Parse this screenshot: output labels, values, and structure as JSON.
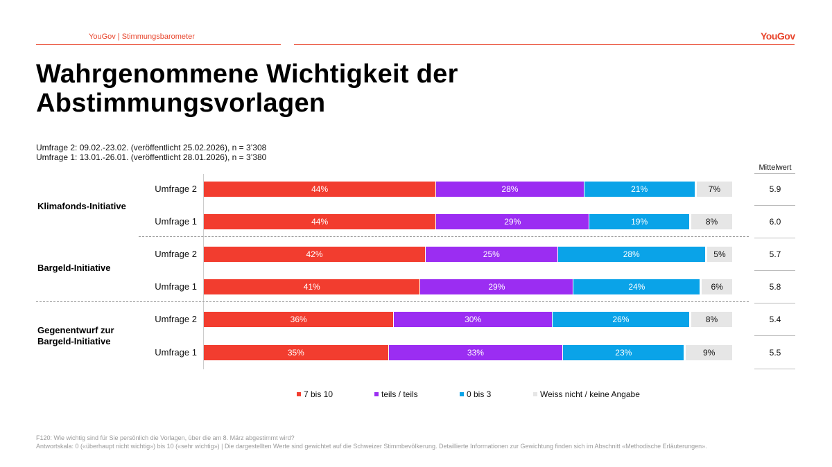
{
  "header": {
    "source_label": "YouGov | Stimmungsbarometer",
    "logo_text": "YouGov"
  },
  "title": "Wahrgenommene Wichtigkeit der Abstimmungsvorlagen",
  "surveys": [
    "Umfrage 2: 09.02.-23.02. (veröffentlicht 25.02.2026), n = 3’308",
    "Umfrage 1: 13.01.-26.01. (veröffentlicht 28.01.2026), n = 3’380"
  ],
  "colors": {
    "red": "#f23d2f",
    "purple": "#9b2df2",
    "blue": "#0aa3e8",
    "grey": "#e6e6e6",
    "accent": "#e8452c"
  },
  "chart_data": {
    "type": "bar",
    "orientation": "horizontal",
    "stacked": true,
    "mean_header": "Mittelwert",
    "legend": [
      "7 bis 10",
      "teils / teils",
      "0 bis 3",
      "Weiss nicht / keine Angabe"
    ],
    "groups": [
      {
        "label": "Klimafonds-Initiative",
        "rows": [
          {
            "label": "Umfrage 2",
            "values": [
              44,
              28,
              21,
              7
            ],
            "mean": "5.9"
          },
          {
            "label": "Umfrage 1",
            "values": [
              44,
              29,
              19,
              8
            ],
            "mean": "6.0"
          }
        ]
      },
      {
        "label": "Bargeld-Initiative",
        "rows": [
          {
            "label": "Umfrage 2",
            "values": [
              42,
              25,
              28,
              5
            ],
            "mean": "5.7"
          },
          {
            "label": "Umfrage 1",
            "values": [
              41,
              29,
              24,
              6
            ],
            "mean": "5.8"
          }
        ]
      },
      {
        "label": "Gegenentwurf zur Bargeld-Initiative",
        "rows": [
          {
            "label": "Umfrage 2",
            "values": [
              36,
              30,
              26,
              8
            ],
            "mean": "5.4"
          },
          {
            "label": "Umfrage 1",
            "values": [
              35,
              33,
              23,
              9
            ],
            "mean": "5.5"
          }
        ]
      }
    ],
    "value_suffix": "%"
  },
  "footnotes": [
    "F120: Wie wichtig sind für Sie persönlich die Vorlagen, über die am 8. März abgestimmt wird?",
    "Antwortskala: 0 («überhaupt nicht wichtig») bis 10 («sehr wichtig») | Die dargestellten Werte sind gewichtet auf die Schweizer Stimmbevölkerung. Detaillierte Informationen zur Gewichtung finden sich im Abschnitt «Methodische Erläuterungen»."
  ]
}
